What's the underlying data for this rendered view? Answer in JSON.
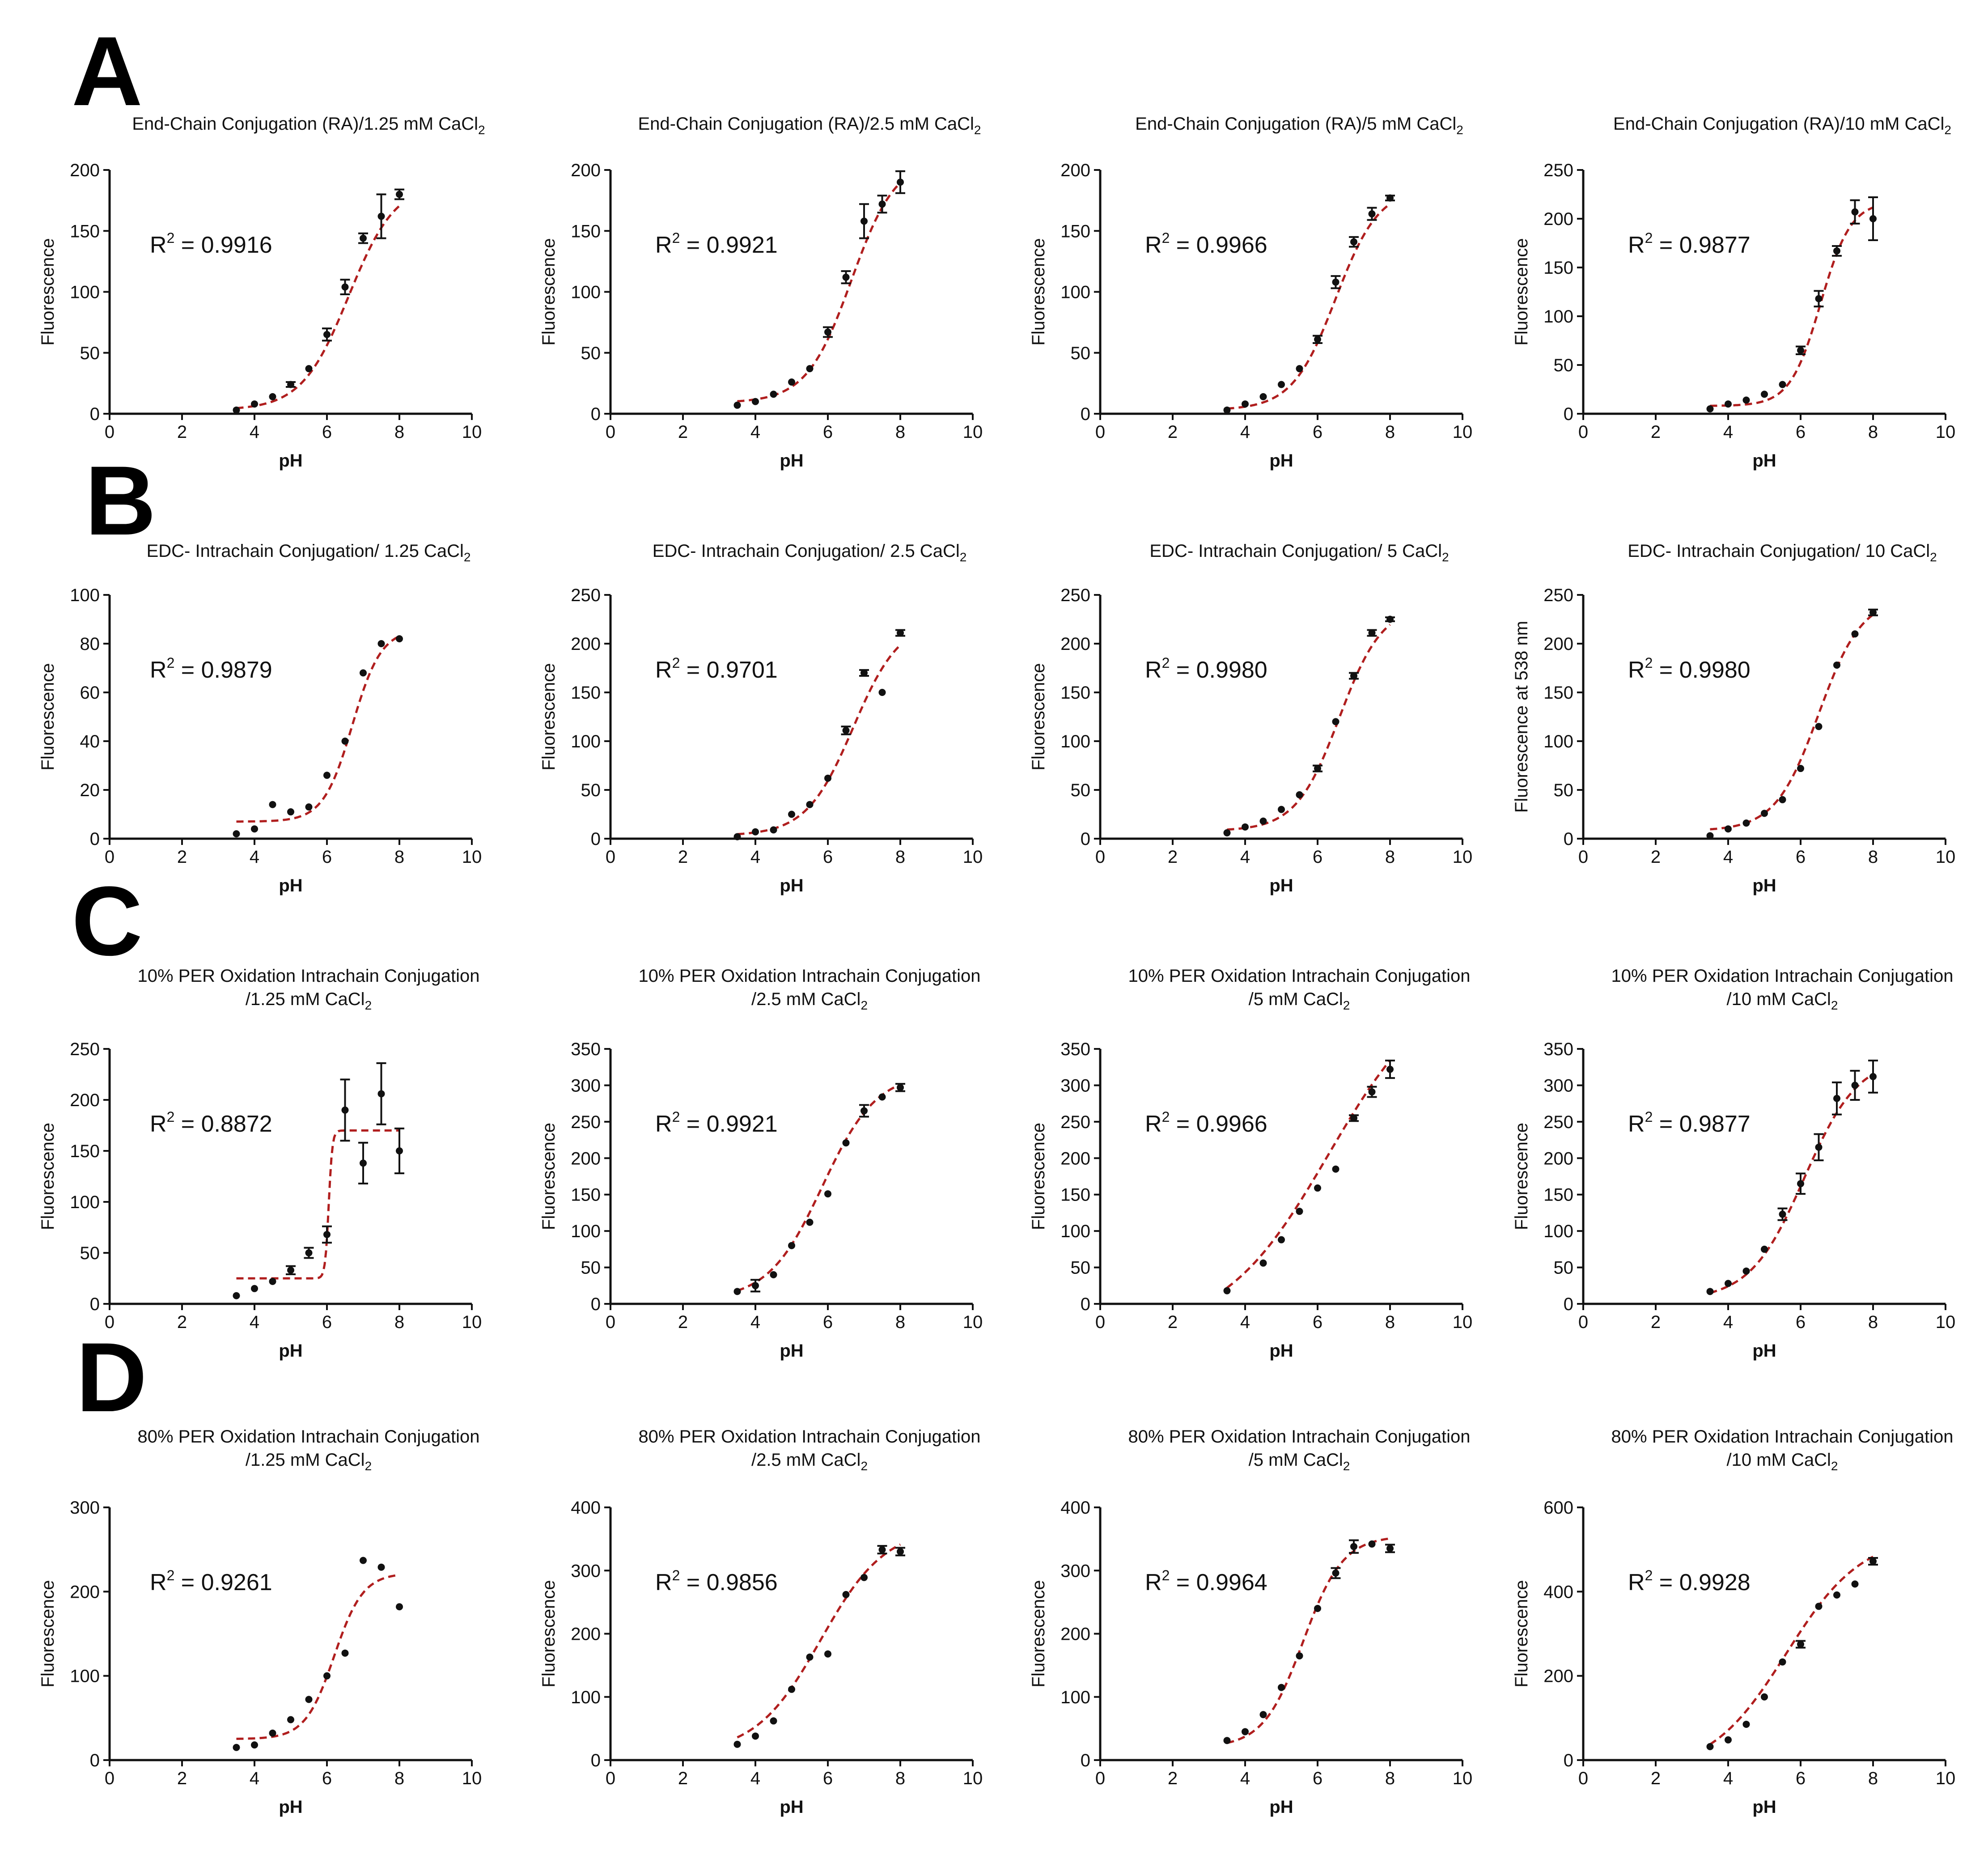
{
  "figure": {
    "rows": [
      "A",
      "B",
      "C",
      "D"
    ]
  },
  "chart_data": [
    {
      "row": "A",
      "type": "scatter",
      "title": "End-Chain Conjugation (RA)/1.25 mM CaCl",
      "title_sub": "2",
      "xlabel": "pH",
      "ylabel": "Fluorescence",
      "xlim": [
        0,
        10
      ],
      "ylim": [
        0,
        200
      ],
      "xticks": [
        0,
        2,
        4,
        6,
        8,
        10
      ],
      "yticks": [
        0,
        50,
        100,
        150,
        200
      ],
      "r2_label": "R",
      "r2_value": " = 0.9916",
      "x": [
        3.5,
        4,
        4.5,
        5,
        5.5,
        6,
        6.5,
        7,
        7.5,
        8
      ],
      "y": [
        3,
        8,
        14,
        24,
        37,
        65,
        104,
        144,
        162,
        180
      ],
      "err": [
        0,
        0,
        0,
        2,
        0,
        5,
        6,
        4,
        18,
        4
      ],
      "fit": {
        "min": 3,
        "max": 190,
        "ec50": 6.6,
        "slope": 0.65
      }
    },
    {
      "row": "A",
      "type": "scatter",
      "title": "End-Chain Conjugation (RA)/2.5 mM CaCl",
      "title_sub": "2",
      "xlabel": "pH",
      "ylabel": "Fluorescence",
      "xlim": [
        0,
        10
      ],
      "ylim": [
        0,
        200
      ],
      "xticks": [
        0,
        2,
        4,
        6,
        8,
        10
      ],
      "yticks": [
        0,
        50,
        100,
        150,
        200
      ],
      "r2_label": "R",
      "r2_value": " = 0.9921",
      "x": [
        3.5,
        4,
        4.5,
        5,
        5.5,
        6,
        6.5,
        7,
        7.5,
        8
      ],
      "y": [
        7,
        10,
        16,
        26,
        37,
        67,
        112,
        158,
        172,
        190
      ],
      "err": [
        0,
        0,
        0,
        0,
        0,
        4,
        5,
        14,
        7,
        9
      ],
      "fit": {
        "min": 9,
        "max": 210,
        "ec50": 6.65,
        "slope": 0.62
      }
    },
    {
      "row": "A",
      "type": "scatter",
      "title": "End-Chain Conjugation (RA)/5 mM CaCl",
      "title_sub": "2",
      "xlabel": "pH",
      "ylabel": "Fluorescence",
      "xlim": [
        0,
        10
      ],
      "ylim": [
        0,
        200
      ],
      "xticks": [
        0,
        2,
        4,
        6,
        8,
        10
      ],
      "yticks": [
        0,
        50,
        100,
        150,
        200
      ],
      "r2_label": "R",
      "r2_value": " = 0.9966",
      "x": [
        3.5,
        4,
        4.5,
        5,
        5.5,
        6,
        6.5,
        7,
        7.5,
        8
      ],
      "y": [
        3,
        8,
        14,
        24,
        37,
        61,
        108,
        141,
        164,
        177
      ],
      "err": [
        0,
        0,
        0,
        0,
        0,
        3,
        5,
        4,
        5,
        2
      ],
      "fit": {
        "min": 3,
        "max": 186,
        "ec50": 6.5,
        "slope": 0.6
      }
    },
    {
      "row": "A",
      "type": "scatter",
      "title": "End-Chain Conjugation (RA)/10 mM CaCl",
      "title_sub": "2",
      "xlabel": "pH",
      "ylabel": "Fluorescence",
      "xlim": [
        0,
        10
      ],
      "ylim": [
        0,
        250
      ],
      "xticks": [
        0,
        2,
        4,
        6,
        8,
        10
      ],
      "yticks": [
        0,
        50,
        100,
        150,
        200,
        250
      ],
      "r2_label": "R",
      "r2_value": " = 0.9877",
      "x": [
        3.5,
        4,
        4.5,
        5,
        5.5,
        6,
        6.5,
        7,
        7.5,
        8
      ],
      "y": [
        5,
        10,
        14,
        20,
        30,
        65,
        118,
        167,
        207,
        200
      ],
      "err": [
        0,
        0,
        0,
        0,
        0,
        4,
        8,
        5,
        12,
        22
      ],
      "fit": {
        "min": 8,
        "max": 218,
        "ec50": 6.55,
        "slope": 0.42
      }
    },
    {
      "row": "B",
      "type": "scatter",
      "title": "EDC- Intrachain Conjugation/ 1.25 CaCl",
      "title_sub": "2",
      "xlabel": "pH",
      "ylabel": "Fluorescence",
      "xlim": [
        0,
        10
      ],
      "ylim": [
        0,
        100
      ],
      "xticks": [
        0,
        2,
        4,
        6,
        8,
        10
      ],
      "yticks": [
        0,
        20,
        40,
        60,
        80,
        100
      ],
      "r2_label": "R",
      "r2_value": " = 0.9879",
      "x": [
        3.5,
        4,
        4.5,
        5,
        5.5,
        6,
        6.5,
        7,
        7.5,
        8
      ],
      "y": [
        2,
        4,
        14,
        11,
        13,
        26,
        40,
        68,
        80,
        82
      ],
      "err": [
        0,
        0,
        0,
        0,
        0,
        0,
        0,
        0,
        0,
        0
      ],
      "fit": {
        "min": 7,
        "max": 86,
        "ec50": 6.7,
        "slope": 0.4
      }
    },
    {
      "row": "B",
      "type": "scatter",
      "title": "EDC- Intrachain Conjugation/ 2.5 CaCl",
      "title_sub": "2",
      "xlabel": "pH",
      "ylabel": "Fluorescence",
      "xlim": [
        0,
        10
      ],
      "ylim": [
        0,
        250
      ],
      "xticks": [
        0,
        2,
        4,
        6,
        8,
        10
      ],
      "yticks": [
        0,
        50,
        100,
        150,
        200,
        250
      ],
      "r2_label": "R",
      "r2_value": " = 0.9701",
      "x": [
        3.5,
        4,
        4.5,
        5,
        5.5,
        6,
        6.5,
        7,
        7.5,
        8
      ],
      "y": [
        2,
        7,
        9,
        25,
        35,
        62,
        111,
        170,
        150,
        211
      ],
      "err": [
        0,
        0,
        0,
        0,
        0,
        0,
        4,
        3,
        0,
        3
      ],
      "fit": {
        "min": 3,
        "max": 225,
        "ec50": 6.7,
        "slope": 0.65
      }
    },
    {
      "row": "B",
      "type": "scatter",
      "title": "EDC- Intrachain Conjugation/ 5 CaCl",
      "title_sub": "2",
      "xlabel": "pH",
      "ylabel": "Fluorescence",
      "xlim": [
        0,
        10
      ],
      "ylim": [
        0,
        250
      ],
      "xticks": [
        0,
        2,
        4,
        6,
        8,
        10
      ],
      "yticks": [
        0,
        50,
        100,
        150,
        200,
        250
      ],
      "r2_label": "R",
      "r2_value": " = 0.9980",
      "x": [
        3.5,
        4,
        4.5,
        5,
        5.5,
        6,
        6.5,
        7,
        7.5,
        8
      ],
      "y": [
        6,
        12,
        18,
        30,
        45,
        72,
        120,
        167,
        211,
        225
      ],
      "err": [
        0,
        0,
        0,
        0,
        0,
        3,
        0,
        3,
        3,
        2
      ],
      "fit": {
        "min": 8,
        "max": 240,
        "ec50": 6.6,
        "slope": 0.6
      }
    },
    {
      "row": "B",
      "type": "scatter",
      "title": "EDC- Intrachain Conjugation/ 10 CaCl",
      "title_sub": "2",
      "xlabel": "pH",
      "ylabel": "Fluorescence at 538 nm",
      "xlim": [
        0,
        10
      ],
      "ylim": [
        0,
        250
      ],
      "xticks": [
        0,
        2,
        4,
        6,
        8,
        10
      ],
      "yticks": [
        0,
        50,
        100,
        150,
        200,
        250
      ],
      "r2_label": "R",
      "r2_value": " = 0.9980",
      "x": [
        3.5,
        4,
        4.5,
        5,
        5.5,
        6,
        6.5,
        7,
        7.5,
        8
      ],
      "y": [
        3,
        10,
        16,
        26,
        40,
        72,
        115,
        178,
        210,
        232
      ],
      "err": [
        0,
        0,
        0,
        0,
        0,
        0,
        0,
        0,
        0,
        3
      ],
      "fit": {
        "min": 8,
        "max": 248,
        "ec50": 6.5,
        "slope": 0.6
      }
    },
    {
      "row": "C",
      "type": "scatter",
      "title": "10% PER Oxidation Intrachain Conjugation",
      "title_line2": "/1.25 mM CaCl",
      "title_sub": "2",
      "xlabel": "pH",
      "ylabel": "Fluorescence",
      "xlim": [
        0,
        10
      ],
      "ylim": [
        0,
        250
      ],
      "xticks": [
        0,
        2,
        4,
        6,
        8,
        10
      ],
      "yticks": [
        0,
        50,
        100,
        150,
        200,
        250
      ],
      "r2_label": "R",
      "r2_value": " = 0.8872",
      "x": [
        3.5,
        4,
        4.5,
        5,
        5.5,
        6,
        6.5,
        7,
        7.5,
        8
      ],
      "y": [
        8,
        15,
        22,
        33,
        50,
        68,
        190,
        138,
        206,
        150
      ],
      "err": [
        0,
        0,
        0,
        4,
        5,
        8,
        30,
        20,
        30,
        22
      ],
      "fit": {
        "min": 25,
        "max": 170,
        "ec50": 6.05,
        "slope": 0.05
      }
    },
    {
      "row": "C",
      "type": "scatter",
      "title": "10% PER Oxidation Intrachain Conjugation",
      "title_line2": "/2.5 mM CaCl",
      "title_sub": "2",
      "xlabel": "pH",
      "ylabel": "Fluorescence",
      "xlim": [
        0,
        10
      ],
      "ylim": [
        0,
        350
      ],
      "xticks": [
        0,
        2,
        4,
        6,
        8,
        10
      ],
      "yticks": [
        0,
        50,
        100,
        150,
        200,
        250,
        300,
        350
      ],
      "r2_label": "R",
      "r2_value": " = 0.9921",
      "x": [
        3.5,
        4,
        4.5,
        5,
        5.5,
        6,
        6.5,
        7,
        7.5,
        8
      ],
      "y": [
        17,
        25,
        40,
        80,
        112,
        151,
        221,
        265,
        284,
        297
      ],
      "err": [
        0,
        8,
        0,
        0,
        0,
        0,
        0,
        8,
        0,
        5
      ],
      "fit": {
        "min": 5,
        "max": 318,
        "ec50": 5.85,
        "slope": 0.75
      }
    },
    {
      "row": "C",
      "type": "scatter",
      "title": "10% PER Oxidation Intrachain Conjugation",
      "title_line2": "/5 mM CaCl",
      "title_sub": "2",
      "xlabel": "pH",
      "ylabel": "Fluorescence",
      "xlim": [
        0,
        10
      ],
      "ylim": [
        0,
        350
      ],
      "xticks": [
        0,
        2,
        4,
        6,
        8,
        10
      ],
      "yticks": [
        0,
        50,
        100,
        150,
        200,
        250,
        300,
        350
      ],
      "r2_label": "R",
      "r2_value": " = 0.9966",
      "x": [
        3.5,
        4.5,
        5,
        5.5,
        6,
        6.5,
        7,
        7.5,
        8
      ],
      "y": [
        18,
        56,
        88,
        127,
        159,
        185,
        255,
        291,
        322
      ],
      "err": [
        0,
        0,
        0,
        0,
        0,
        0,
        4,
        7,
        12
      ],
      "fit": {
        "min": -40,
        "max": 450,
        "ec50": 6.3,
        "slope": 1.45
      }
    },
    {
      "row": "C",
      "type": "scatter",
      "title": "10% PER Oxidation Intrachain Conjugation",
      "title_line2": "/10 mM CaCl",
      "title_sub": "2",
      "xlabel": "pH",
      "ylabel": "Fluorescence",
      "xlim": [
        0,
        10
      ],
      "ylim": [
        0,
        350
      ],
      "xticks": [
        0,
        2,
        4,
        6,
        8,
        10
      ],
      "yticks": [
        0,
        50,
        100,
        150,
        200,
        250,
        300,
        350
      ],
      "r2_label": "R",
      "r2_value": " = 0.9877",
      "x": [
        3.5,
        4,
        4.5,
        5,
        5.5,
        6,
        6.5,
        7,
        7.5,
        8
      ],
      "y": [
        17,
        28,
        45,
        75,
        123,
        165,
        215,
        282,
        300,
        312
      ],
      "err": [
        0,
        0,
        0,
        0,
        8,
        14,
        18,
        22,
        20,
        22
      ],
      "fit": {
        "min": 5,
        "max": 340,
        "ec50": 6.1,
        "slope": 0.75
      }
    },
    {
      "row": "D",
      "type": "scatter",
      "title": "80% PER Oxidation Intrachain Conjugation",
      "title_line2": "/1.25 mM CaCl",
      "title_sub": "2",
      "xlabel": "pH",
      "ylabel": "Fluorescence",
      "xlim": [
        0,
        10
      ],
      "ylim": [
        0,
        300
      ],
      "xticks": [
        0,
        2,
        4,
        6,
        8,
        10
      ],
      "yticks": [
        0,
        100,
        200,
        300
      ],
      "r2_label": "R",
      "r2_value": " = 0.9261",
      "x": [
        3.5,
        4,
        4.5,
        5,
        5.5,
        6,
        6.5,
        7,
        7.5,
        8
      ],
      "y": [
        15,
        18,
        32,
        48,
        72,
        100,
        127,
        237,
        229,
        182
      ],
      "err": [
        0,
        0,
        0,
        0,
        0,
        0,
        0,
        0,
        0,
        0
      ],
      "fit": {
        "min": 25,
        "max": 222,
        "ec50": 6.2,
        "slope": 0.4
      }
    },
    {
      "row": "D",
      "type": "scatter",
      "title": "80% PER Oxidation Intrachain Conjugation",
      "title_line2": "/2.5 mM CaCl",
      "title_sub": "2",
      "xlabel": "pH",
      "ylabel": "Fluorescence",
      "xlim": [
        0,
        10
      ],
      "ylim": [
        0,
        400
      ],
      "xticks": [
        0,
        2,
        4,
        6,
        8,
        10
      ],
      "yticks": [
        0,
        100,
        200,
        300,
        400
      ],
      "r2_label": "R",
      "r2_value": " = 0.9856",
      "x": [
        3.5,
        4,
        4.5,
        5,
        5.5,
        6,
        6.5,
        7,
        7.5,
        8
      ],
      "y": [
        25,
        38,
        62,
        112,
        163,
        168,
        262,
        289,
        333,
        330
      ],
      "err": [
        0,
        0,
        0,
        0,
        0,
        0,
        0,
        0,
        6,
        6
      ],
      "fit": {
        "min": 10,
        "max": 370,
        "ec50": 5.8,
        "slope": 0.9
      }
    },
    {
      "row": "D",
      "type": "scatter",
      "title": "80% PER Oxidation Intrachain Conjugation",
      "title_line2": "/5 mM CaCl",
      "title_sub": "2",
      "xlabel": "pH",
      "ylabel": "Fluorescence",
      "xlim": [
        0,
        10
      ],
      "ylim": [
        0,
        400
      ],
      "xticks": [
        0,
        2,
        4,
        6,
        8,
        10
      ],
      "yticks": [
        0,
        100,
        200,
        300,
        400
      ],
      "r2_label": "R",
      "r2_value": " = 0.9964",
      "x": [
        3.5,
        4,
        4.5,
        5,
        5.5,
        6,
        6.5,
        7,
        7.5,
        8
      ],
      "y": [
        31,
        45,
        72,
        115,
        165,
        240,
        296,
        338,
        342,
        335
      ],
      "err": [
        0,
        0,
        0,
        0,
        0,
        0,
        8,
        10,
        0,
        6
      ],
      "fit": {
        "min": 20,
        "max": 355,
        "ec50": 5.6,
        "slope": 0.55
      }
    },
    {
      "row": "D",
      "type": "scatter",
      "title": "80% PER Oxidation Intrachain Conjugation",
      "title_line2": "/10 mM CaCl",
      "title_sub": "2",
      "xlabel": "pH",
      "ylabel": "Fluorescence",
      "xlim": [
        0,
        10
      ],
      "ylim": [
        0,
        600
      ],
      "xticks": [
        0,
        2,
        4,
        6,
        8,
        10
      ],
      "yticks": [
        0,
        200,
        400,
        600
      ],
      "r2_label": "R",
      "r2_value": " = 0.9928",
      "x": [
        3.5,
        4,
        4.5,
        5,
        5.5,
        6,
        6.5,
        7,
        7.5,
        8
      ],
      "y": [
        32,
        48,
        85,
        150,
        233,
        275,
        365,
        392,
        418,
        472
      ],
      "err": [
        0,
        0,
        0,
        0,
        0,
        8,
        0,
        0,
        0,
        8
      ],
      "fit": {
        "min": -30,
        "max": 535,
        "ec50": 5.6,
        "slope": 1.05
      }
    }
  ]
}
